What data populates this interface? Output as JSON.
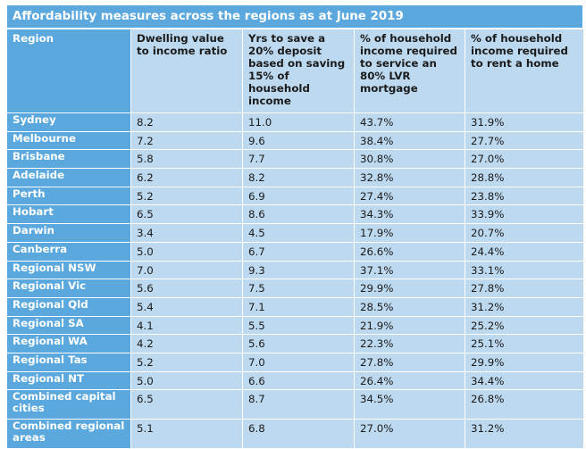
{
  "title": "Affordability measures across the regions as at June 2019",
  "columns": [
    "Region",
    "Dwelling value to income ratio",
    "Yrs to save a 20% deposit based on saving 15% of household income",
    "% of household income required to service an 80% LVR mortgage",
    "% of household income required to rent a home"
  ],
  "rows": [
    [
      "Sydney",
      "8.2",
      "11.0",
      "43.7%",
      "31.9%"
    ],
    [
      "Melbourne",
      "7.2",
      "9.6",
      "38.4%",
      "27.7%"
    ],
    [
      "Brisbane",
      "5.8",
      "7.7",
      "30.8%",
      "27.0%"
    ],
    [
      "Adelaide",
      "6.2",
      "8.2",
      "32.8%",
      "28.8%"
    ],
    [
      "Perth",
      "5.2",
      "6.9",
      "27.4%",
      "23.8%"
    ],
    [
      "Hobart",
      "6.5",
      "8.6",
      "34.3%",
      "33.9%"
    ],
    [
      "Darwin",
      "3.4",
      "4.5",
      "17.9%",
      "20.7%"
    ],
    [
      "Canberra",
      "5.0",
      "6.7",
      "26.6%",
      "24.4%"
    ],
    [
      "Regional NSW",
      "7.0",
      "9.3",
      "37.1%",
      "33.1%"
    ],
    [
      "Regional Vic",
      "5.6",
      "7.5",
      "29.9%",
      "27.8%"
    ],
    [
      "Regional Qld",
      "5.4",
      "7.1",
      "28.5%",
      "31.2%"
    ],
    [
      "Regional SA",
      "4.1",
      "5.5",
      "21.9%",
      "25.2%"
    ],
    [
      "Regional WA",
      "4.2",
      "5.6",
      "22.3%",
      "25.1%"
    ],
    [
      "Regional Tas",
      "5.2",
      "7.0",
      "27.8%",
      "29.9%"
    ],
    [
      "Regional NT",
      "5.0",
      "6.6",
      "26.4%",
      "34.4%"
    ],
    [
      "Combined capital cities",
      "6.5",
      "8.7",
      "34.5%",
      "26.8%"
    ],
    [
      "Combined regional areas",
      "5.1",
      "6.8",
      "27.0%",
      "31.2%"
    ]
  ],
  "colors": {
    "header_blue": "#5aa8dd",
    "cell_light_blue": "#bdd9ef",
    "cell_text": "#1a1a1a",
    "header_text": "#ffffff"
  }
}
